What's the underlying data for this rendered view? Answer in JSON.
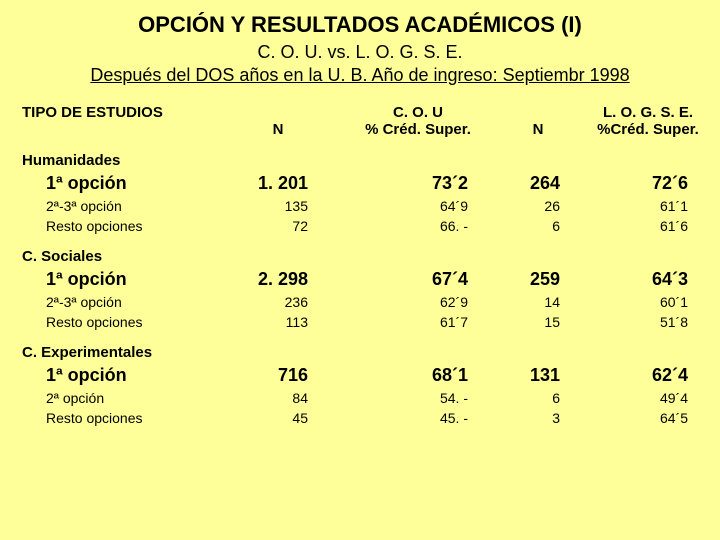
{
  "title": {
    "main": "OPCIÓN Y RESULTADOS ACADÉMICOS (I)",
    "sub1": "C. O. U. vs. L. O. G. S. E.",
    "sub2": "Después del DOS años en la U. B. Año de ingreso: Septiembr 1998"
  },
  "headers": {
    "left": "TIPO DE ESTUDIOS",
    "n1": "N",
    "p1_line1": "C. O. U",
    "p1_line2": "% Créd. Super.",
    "n2": "N",
    "p2_line1": "L. O. G. S. E.",
    "p2_line2": "%Créd. Super."
  },
  "sections": [
    {
      "name": "Humanidades",
      "rows": [
        {
          "label": "1ª opción",
          "n1": "1. 201",
          "p1": "73´2",
          "n2": "264",
          "p2": "72´6",
          "bold": true
        },
        {
          "label": "2ª-3ª opción",
          "n1": "135",
          "p1": "64´9",
          "n2": "26",
          "p2": "61´1",
          "bold": false
        },
        {
          "label": "Resto opciones",
          "n1": "72",
          "p1": "66. -",
          "n2": "6",
          "p2": "61´6",
          "bold": false
        }
      ]
    },
    {
      "name": "C. Sociales",
      "rows": [
        {
          "label": "1ª opción",
          "n1": "2. 298",
          "p1": "67´4",
          "n2": "259",
          "p2": "64´3",
          "bold": true
        },
        {
          "label": "2ª-3ª opción",
          "n1": "236",
          "p1": "62´9",
          "n2": "14",
          "p2": "60´1",
          "bold": false
        },
        {
          "label": "Resto opciones",
          "n1": "113",
          "p1": "61´7",
          "n2": "15",
          "p2": "51´8",
          "bold": false
        }
      ]
    },
    {
      "name": "C. Experimentales",
      "rows": [
        {
          "label": "1ª opción",
          "n1": "716",
          "p1": "68´1",
          "n2": "131",
          "p2": "62´4",
          "bold": true
        },
        {
          "label": "2ª opción",
          "n1": "84",
          "p1": "54. -",
          "n2": "6",
          "p2": "49´4",
          "bold": false
        },
        {
          "label": "Resto opciones",
          "n1": "45",
          "p1": "45. -",
          "n2": "3",
          "p2": "64´5",
          "bold": false
        }
      ]
    }
  ],
  "colors": {
    "background": "#ffff99",
    "text": "#000000"
  }
}
